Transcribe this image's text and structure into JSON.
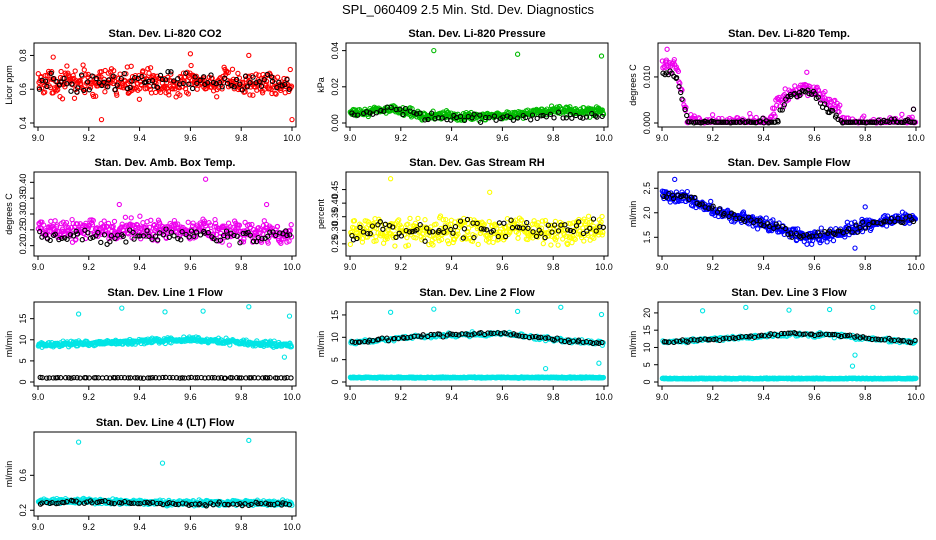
{
  "figure_title": "SPL_060409  2.5 Min. Std. Dev. Diagnostics",
  "colors": {
    "black": "#000000",
    "red": "#ff0000",
    "green": "#00bb00",
    "magenta": "#ee00ee",
    "yellow": "#ffff00",
    "blue": "#0000ff",
    "cyan": "#00e5e5"
  },
  "chart_data": [
    {
      "id": "p1",
      "type": "scatter",
      "title": "Stan. Dev. Li-820 CO2",
      "ylabel": "Licor ppm",
      "xlim": [
        9.0,
        10.0
      ],
      "ylim": [
        0.4,
        0.85
      ],
      "xticks": [
        "9.0",
        "9.2",
        "9.4",
        "9.6",
        "9.8",
        "10.0"
      ],
      "yticks": [
        "0.4",
        "0.6",
        "0.8"
      ],
      "series": [
        {
          "name": "primary",
          "color": "red",
          "n": 420,
          "mode": "band",
          "center": [
            [
              9.0,
              0.64
            ],
            [
              9.5,
              0.64
            ],
            [
              10.0,
              0.63
            ]
          ],
          "spread": 0.07,
          "outliers": [
            [
              9.06,
              0.79
            ],
            [
              9.25,
              0.42
            ],
            [
              9.6,
              0.81
            ],
            [
              10.0,
              0.42
            ],
            [
              9.83,
              0.8
            ]
          ]
        },
        {
          "name": "secondary",
          "color": "black",
          "n": 90,
          "mode": "band",
          "center": [
            [
              9.0,
              0.64
            ],
            [
              10.0,
              0.64
            ]
          ],
          "spread": 0.05,
          "outliers": []
        }
      ]
    },
    {
      "id": "p2",
      "type": "scatter",
      "title": "Stan. Dev. Li-820 Pressure",
      "ylabel": "kPa",
      "xlim": [
        9.0,
        10.0
      ],
      "ylim": [
        0.0,
        0.042
      ],
      "xticks": [
        "9.0",
        "9.2",
        "9.4",
        "9.6",
        "9.8",
        "10.0"
      ],
      "yticks": [
        "0.00",
        "0.02",
        "0.04"
      ],
      "series": [
        {
          "name": "primary",
          "color": "green",
          "n": 420,
          "mode": "band",
          "center": [
            [
              9.0,
              0.005
            ],
            [
              9.15,
              0.008
            ],
            [
              9.3,
              0.004
            ],
            [
              9.6,
              0.004
            ],
            [
              9.8,
              0.007
            ],
            [
              10.0,
              0.006
            ]
          ],
          "spread": 0.002,
          "outliers": [
            [
              9.33,
              0.04
            ],
            [
              9.66,
              0.038
            ],
            [
              9.99,
              0.037
            ]
          ]
        },
        {
          "name": "secondary",
          "color": "black",
          "n": 70,
          "mode": "band",
          "center": [
            [
              9.0,
              0.003
            ],
            [
              9.15,
              0.008
            ],
            [
              9.3,
              0.003
            ],
            [
              9.6,
              0.003
            ],
            [
              10.0,
              0.005
            ]
          ],
          "spread": 0.002,
          "outliers": []
        }
      ]
    },
    {
      "id": "p3",
      "type": "scatter",
      "title": "Stan. Dev. Li-820 Temp.",
      "ylabel": "degrees C",
      "xlim": [
        9.0,
        10.0
      ],
      "ylim": [
        0.0,
        0.0165
      ],
      "xticks": [
        "9.0",
        "9.2",
        "9.4",
        "9.6",
        "9.8",
        "10.0"
      ],
      "yticks": [
        "0.000",
        "0.010"
      ],
      "series": [
        {
          "name": "primary",
          "color": "magenta",
          "n": 320,
          "mode": "band",
          "center": [
            [
              9.0,
              0.013
            ],
            [
              9.06,
              0.012
            ],
            [
              9.1,
              0.0
            ],
            [
              9.42,
              0.0
            ],
            [
              9.45,
              0.004
            ],
            [
              9.55,
              0.008
            ],
            [
              9.6,
              0.007
            ],
            [
              9.68,
              0.004
            ],
            [
              9.72,
              0.0
            ],
            [
              10.0,
              0.0
            ]
          ],
          "spread": 0.0015,
          "outliers": [
            [
              9.02,
              0.016
            ],
            [
              9.57,
              0.011
            ],
            [
              9.99,
              0.003
            ]
          ]
        },
        {
          "name": "secondary",
          "color": "black",
          "n": 140,
          "mode": "band",
          "center": [
            [
              9.0,
              0.011
            ],
            [
              9.06,
              0.01
            ],
            [
              9.1,
              0.0
            ],
            [
              9.45,
              0.0
            ],
            [
              9.5,
              0.006
            ],
            [
              9.58,
              0.007
            ],
            [
              9.66,
              0.003
            ],
            [
              9.7,
              0.0
            ],
            [
              10.0,
              0.0
            ]
          ],
          "spread": 0.0008,
          "outliers": [
            [
              9.99,
              0.003
            ]
          ]
        }
      ]
    },
    {
      "id": "p4",
      "type": "scatter",
      "title": "Stan. Dev. Amb. Box Temp.",
      "ylabel": "degrees C",
      "xlim": [
        9.0,
        10.0
      ],
      "ylim": [
        0.18,
        0.42
      ],
      "xticks": [
        "9.0",
        "9.2",
        "9.4",
        "9.6",
        "9.8",
        "10.0"
      ],
      "yticks": [
        "0.20",
        "0.25",
        "0.30",
        "0.35",
        "0.40"
      ],
      "series": [
        {
          "name": "primary",
          "color": "magenta",
          "n": 420,
          "mode": "band",
          "center": [
            [
              9.0,
              0.25
            ],
            [
              9.5,
              0.25
            ],
            [
              10.0,
              0.24
            ]
          ],
          "spread": 0.03,
          "outliers": [
            [
              9.66,
              0.41
            ],
            [
              9.32,
              0.33
            ],
            [
              9.9,
              0.33
            ]
          ]
        },
        {
          "name": "secondary",
          "color": "black",
          "n": 90,
          "mode": "band",
          "center": [
            [
              9.0,
              0.23
            ],
            [
              10.0,
              0.23
            ]
          ],
          "spread": 0.02,
          "outliers": []
        }
      ]
    },
    {
      "id": "p5",
      "type": "scatter",
      "title": "Stan. Dev. Gas Stream RH",
      "ylabel": "percent",
      "xlim": [
        9.0,
        10.0
      ],
      "ylim": [
        0.22,
        0.5
      ],
      "xticks": [
        "9.0",
        "9.2",
        "9.4",
        "9.6",
        "9.8",
        "10.0"
      ],
      "yticks": [
        "0.25",
        "0.30",
        "0.35",
        "0.40",
        "0.45"
      ],
      "series": [
        {
          "name": "primary",
          "color": "yellow",
          "n": 420,
          "mode": "band",
          "center": [
            [
              9.0,
              0.3
            ],
            [
              10.0,
              0.3
            ]
          ],
          "spread": 0.045,
          "outliers": [
            [
              9.16,
              0.49
            ],
            [
              9.55,
              0.44
            ]
          ]
        },
        {
          "name": "secondary",
          "color": "black",
          "n": 80,
          "mode": "band",
          "center": [
            [
              9.0,
              0.3
            ],
            [
              10.0,
              0.3
            ]
          ],
          "spread": 0.035,
          "outliers": []
        }
      ]
    },
    {
      "id": "p6",
      "type": "scatter",
      "title": "Stan. Dev. Sample Flow",
      "ylabel": "ml/min",
      "xlim": [
        9.0,
        10.0
      ],
      "ylim": [
        1.2,
        2.75
      ],
      "xticks": [
        "9.0",
        "9.2",
        "9.4",
        "9.6",
        "9.8",
        "10.0"
      ],
      "yticks": [
        "1.5",
        "2.0",
        "2.5"
      ],
      "series": [
        {
          "name": "primary",
          "color": "blue",
          "n": 420,
          "mode": "band",
          "center": [
            [
              9.0,
              2.35
            ],
            [
              9.1,
              2.3
            ],
            [
              9.2,
              2.05
            ],
            [
              9.3,
              1.9
            ],
            [
              9.4,
              1.8
            ],
            [
              9.5,
              1.6
            ],
            [
              9.6,
              1.5
            ],
            [
              9.7,
              1.6
            ],
            [
              9.8,
              1.75
            ],
            [
              9.9,
              1.85
            ],
            [
              10.0,
              1.9
            ]
          ],
          "spread": 0.12,
          "outliers": [
            [
              9.05,
              2.68
            ],
            [
              9.76,
              1.28
            ],
            [
              9.8,
              2.12
            ]
          ]
        },
        {
          "name": "secondary",
          "color": "black",
          "n": 90,
          "mode": "band",
          "center": [
            [
              9.0,
              2.4
            ],
            [
              9.1,
              2.3
            ],
            [
              9.2,
              2.05
            ],
            [
              9.3,
              1.9
            ],
            [
              9.4,
              1.8
            ],
            [
              9.5,
              1.6
            ],
            [
              9.6,
              1.55
            ],
            [
              9.7,
              1.6
            ],
            [
              9.8,
              1.75
            ],
            [
              9.9,
              1.85
            ],
            [
              10.0,
              1.9
            ]
          ],
          "spread": 0.08,
          "outliers": []
        }
      ]
    },
    {
      "id": "p7",
      "type": "scatter",
      "title": "Stan. Dev. Line 1 Flow",
      "ylabel": "ml/min",
      "xlim": [
        9.0,
        10.0
      ],
      "ylim": [
        0,
        18
      ],
      "xticks": [
        "9.0",
        "9.2",
        "9.4",
        "9.6",
        "9.8",
        "10.0"
      ],
      "yticks": [
        "0",
        "5",
        "10",
        "15"
      ],
      "series": [
        {
          "name": "primary",
          "color": "cyan",
          "n": 420,
          "mode": "band",
          "center": [
            [
              9.0,
              8.8
            ],
            [
              9.4,
              9.6
            ],
            [
              9.6,
              10.0
            ],
            [
              9.9,
              9.0
            ],
            [
              10.0,
              8.7
            ]
          ],
          "spread": 0.55,
          "outliers": [
            [
              9.16,
              16.1
            ],
            [
              9.33,
              17.5
            ],
            [
              9.5,
              16.6
            ],
            [
              9.65,
              16.8
            ],
            [
              9.83,
              17.8
            ],
            [
              9.99,
              15.6
            ],
            [
              9.97,
              5.9
            ]
          ]
        },
        {
          "name": "secondary",
          "color": "black",
          "n": 80,
          "mode": "band",
          "center": [
            [
              9.0,
              1.0
            ],
            [
              10.0,
              1.0
            ]
          ],
          "spread": 0.08,
          "outliers": []
        }
      ]
    },
    {
      "id": "p8",
      "type": "scatter",
      "title": "Stan. Dev. Line 2 Flow",
      "ylabel": "ml/min",
      "xlim": [
        9.0,
        10.0
      ],
      "ylim": [
        0,
        17
      ],
      "xticks": [
        "9.0",
        "9.2",
        "9.4",
        "9.6",
        "9.8",
        "10.0"
      ],
      "yticks": [
        "0",
        "5",
        "10",
        "15"
      ],
      "series": [
        {
          "name": "primary",
          "color": "cyan",
          "n": 420,
          "mode": "band",
          "center": [
            [
              9.0,
              1.0
            ],
            [
              10.0,
              1.0
            ]
          ],
          "spread": 0.12,
          "outliers": [
            [
              9.16,
              15.6
            ],
            [
              9.33,
              16.3
            ],
            [
              9.66,
              15.8
            ],
            [
              9.83,
              16.7
            ],
            [
              9.99,
              15.1
            ],
            [
              9.77,
              3.0
            ],
            [
              9.98,
              4.2
            ]
          ]
        },
        {
          "name": "secondary",
          "color": "cyan",
          "n": 200,
          "mode": "band",
          "center": [
            [
              9.0,
              8.8
            ],
            [
              9.2,
              9.8
            ],
            [
              9.4,
              10.5
            ],
            [
              9.6,
              10.8
            ],
            [
              9.8,
              9.5
            ],
            [
              10.0,
              8.6
            ]
          ],
          "spread": 0.4,
          "outliers": []
        },
        {
          "name": "tertiary",
          "color": "black",
          "n": 80,
          "mode": "band",
          "center": [
            [
              9.0,
              8.8
            ],
            [
              9.2,
              9.9
            ],
            [
              9.4,
              10.6
            ],
            [
              9.6,
              10.8
            ],
            [
              9.8,
              9.5
            ],
            [
              10.0,
              8.7
            ]
          ],
          "spread": 0.35,
          "outliers": []
        }
      ]
    },
    {
      "id": "p9",
      "type": "scatter",
      "title": "Stan. Dev. Line 3 Flow",
      "ylabel": "ml/min",
      "xlim": [
        9.0,
        10.0
      ],
      "ylim": [
        0,
        22
      ],
      "xticks": [
        "9.0",
        "9.2",
        "9.4",
        "9.6",
        "9.8",
        "10.0"
      ],
      "yticks": [
        "0",
        "5",
        "10",
        "15",
        "20"
      ],
      "series": [
        {
          "name": "primary",
          "color": "cyan",
          "n": 420,
          "mode": "band",
          "center": [
            [
              9.0,
              1.0
            ],
            [
              10.0,
              1.0
            ]
          ],
          "spread": 0.12,
          "outliers": [
            [
              9.16,
              20.6
            ],
            [
              9.33,
              21.6
            ],
            [
              9.5,
              20.8
            ],
            [
              9.66,
              21.0
            ],
            [
              9.83,
              21.6
            ],
            [
              10.0,
              20.3
            ],
            [
              9.75,
              4.6
            ],
            [
              9.76,
              7.8
            ]
          ]
        },
        {
          "name": "secondary",
          "color": "cyan",
          "n": 200,
          "mode": "band",
          "center": [
            [
              9.0,
              11.5
            ],
            [
              9.3,
              12.8
            ],
            [
              9.5,
              13.8
            ],
            [
              9.7,
              13.5
            ],
            [
              9.85,
              12.3
            ],
            [
              10.0,
              11.5
            ]
          ],
          "spread": 0.5,
          "outliers": []
        },
        {
          "name": "tertiary",
          "color": "black",
          "n": 80,
          "mode": "band",
          "center": [
            [
              9.0,
              11.5
            ],
            [
              9.3,
              12.8
            ],
            [
              9.5,
              13.9
            ],
            [
              9.7,
              13.6
            ],
            [
              9.85,
              12.4
            ],
            [
              10.0,
              11.6
            ]
          ],
          "spread": 0.4,
          "outliers": []
        }
      ]
    },
    {
      "id": "p10",
      "type": "scatter",
      "title": "Stan. Dev. Line 4 (LT) Flow",
      "ylabel": "ml/min",
      "xlim": [
        9.0,
        10.0
      ],
      "ylim": [
        0.18,
        1.05
      ],
      "xticks": [
        "9.0",
        "9.2",
        "9.4",
        "9.6",
        "9.8",
        "10.0"
      ],
      "yticks": [
        "0.2",
        "0.6"
      ],
      "series": [
        {
          "name": "primary",
          "color": "cyan",
          "n": 420,
          "mode": "band",
          "center": [
            [
              9.0,
              0.3
            ],
            [
              9.2,
              0.31
            ],
            [
              9.5,
              0.28
            ],
            [
              9.8,
              0.29
            ],
            [
              10.0,
              0.28
            ]
          ],
          "spread": 0.025,
          "outliers": [
            [
              9.16,
              0.98
            ],
            [
              9.49,
              0.74
            ],
            [
              9.83,
              1.0
            ]
          ]
        },
        {
          "name": "secondary",
          "color": "black",
          "n": 80,
          "mode": "band",
          "center": [
            [
              9.0,
              0.28
            ],
            [
              9.2,
              0.3
            ],
            [
              9.5,
              0.27
            ],
            [
              10.0,
              0.27
            ]
          ],
          "spread": 0.02,
          "outliers": []
        }
      ]
    }
  ]
}
